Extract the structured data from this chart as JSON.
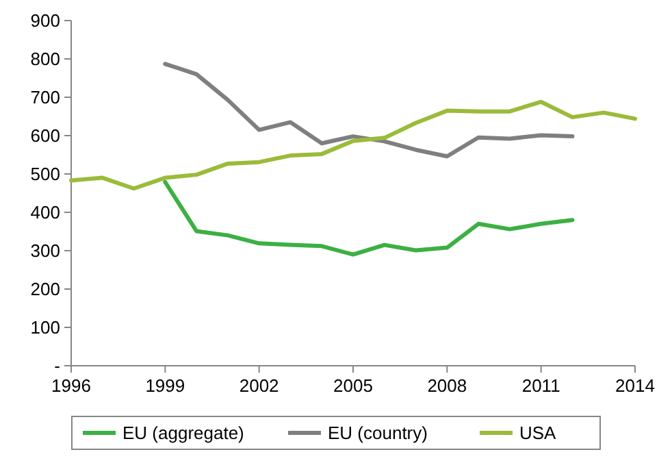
{
  "chart_data": {
    "type": "line",
    "x": [
      1996,
      1997,
      1998,
      1999,
      2000,
      2001,
      2002,
      2003,
      2004,
      2005,
      2006,
      2007,
      2008,
      2009,
      2010,
      2011,
      2012,
      2013,
      2014
    ],
    "series": [
      {
        "name": "EU (aggregate)",
        "color": "#3cb043",
        "values": [
          null,
          null,
          null,
          479,
          351,
          340,
          319,
          315,
          312,
          290,
          315,
          301,
          308,
          370,
          356,
          370,
          380,
          null,
          null
        ]
      },
      {
        "name": "EU (country)",
        "color": "#7f7f7f",
        "values": [
          null,
          null,
          null,
          787,
          760,
          693,
          615,
          635,
          580,
          598,
          585,
          563,
          546,
          595,
          592,
          601,
          598,
          null,
          null
        ]
      },
      {
        "name": "USA",
        "color": "#9bbb3a",
        "values": [
          483,
          490,
          462,
          490,
          498,
          527,
          531,
          548,
          552,
          586,
          594,
          633,
          665,
          663,
          663,
          688,
          648,
          660,
          644
        ]
      }
    ],
    "xlim": [
      1996,
      2014
    ],
    "xticks": [
      1996,
      1999,
      2002,
      2005,
      2008,
      2011,
      2014
    ],
    "ylim": [
      0,
      900
    ],
    "yticks": [
      {
        "value": 0,
        "label": "-"
      },
      100,
      200,
      300,
      400,
      500,
      600,
      700,
      800,
      900
    ],
    "grid": false,
    "legend": "bottom",
    "marker": "none",
    "line_style": "solid"
  }
}
